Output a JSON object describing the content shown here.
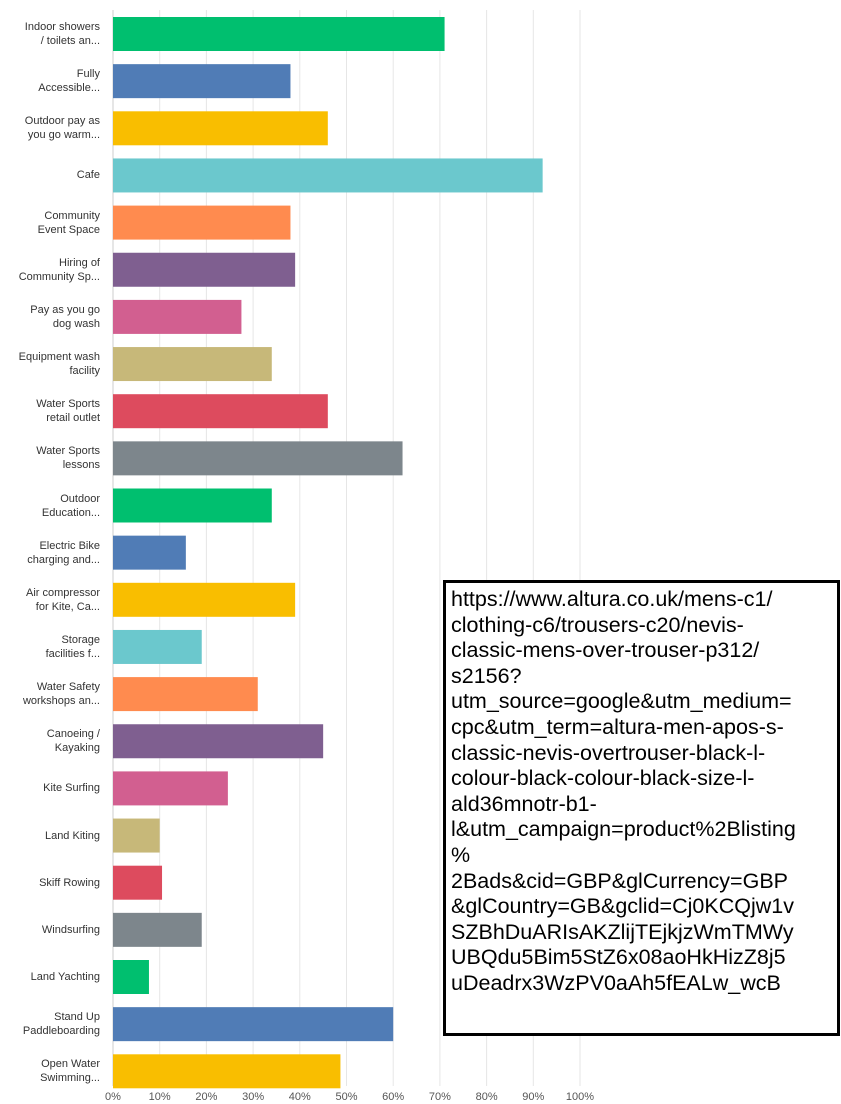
{
  "chart_data": {
    "type": "bar",
    "orientation": "horizontal",
    "categories": [
      "Indoor showers\n/ toilets an...",
      "Fully\nAccessible...",
      "Outdoor pay as\nyou go warm...",
      "Cafe",
      "Community\nEvent Space",
      "Hiring of\nCommunity Sp...",
      "Pay as you go\ndog wash",
      "Equipment wash\nfacility",
      "Water Sports\nretail outlet",
      "Water Sports\nlessons",
      "Outdoor\nEducation...",
      "Electric Bike\ncharging and...",
      "Air compressor\nfor Kite, Ca...",
      "Storage\nfacilities f...",
      "Water Safety\nworkshops an...",
      "Canoeing /\nKayaking",
      "Kite Surfing",
      "Land Kiting",
      "Skiff Rowing",
      "Windsurfing",
      "Land Yachting",
      "Stand Up\nPaddleboarding",
      "Open Water\nSwimming..."
    ],
    "values": [
      71,
      38,
      46,
      92,
      38,
      39,
      27.5,
      34,
      46,
      62,
      34,
      15.6,
      39,
      19,
      31,
      45,
      24.6,
      10,
      10.5,
      19,
      7.7,
      60,
      48.7
    ],
    "colors": [
      "#00bf6f",
      "#507cb6",
      "#f9be00",
      "#6bc8cd",
      "#ff8b4f",
      "#7f5f90",
      "#d25f90",
      "#c7b879",
      "#dd4b5e",
      "#7d868c",
      "#00bf6f",
      "#507cb6",
      "#f9be00",
      "#6bc8cd",
      "#ff8b4f",
      "#7f5f90",
      "#d25f90",
      "#c7b879",
      "#dd4b5e",
      "#7d868c",
      "#00bf6f",
      "#507cb6",
      "#f9be00"
    ],
    "xlim": [
      0,
      100
    ],
    "xticks": [
      {
        "value": 0,
        "label": "0%"
      },
      {
        "value": 10,
        "label": "10%"
      },
      {
        "value": 20,
        "label": "20%"
      },
      {
        "value": 30,
        "label": "30%"
      },
      {
        "value": 40,
        "label": "40%"
      },
      {
        "value": 50,
        "label": "50%"
      },
      {
        "value": 60,
        "label": "60%"
      },
      {
        "value": 70,
        "label": "70%"
      },
      {
        "value": 80,
        "label": "80%"
      },
      {
        "value": 90,
        "label": "90%"
      },
      {
        "value": 100,
        "label": "100%"
      }
    ],
    "grid": true,
    "annotation": "https://www.altura.co.uk/mens-c1/\nclothing-c6/trousers-c20/nevis-\nclassic-mens-over-trouser-p312/\ns2156?\nutm_source=google&utm_medium=\ncpc&utm_term=altura-men-apos-s-\nclassic-nevis-overtrouser-black-l-\ncolour-black-colour-black-size-l-\nald36mnotr-b1-\nl&utm_campaign=product%2Blisting\n%\n2Bads&cid=GBP&glCurrency=GBP\n&glCountry=GB&gclid=Cj0KCQjw1v\nSZBhDuARIsAKZlijTEjkjzWmTMWy\nUBQdu5Bim5StZ6x08aoHkHizZ8j5\nuDeadrx3WzPV0aAh5fEALw_wcB"
  }
}
